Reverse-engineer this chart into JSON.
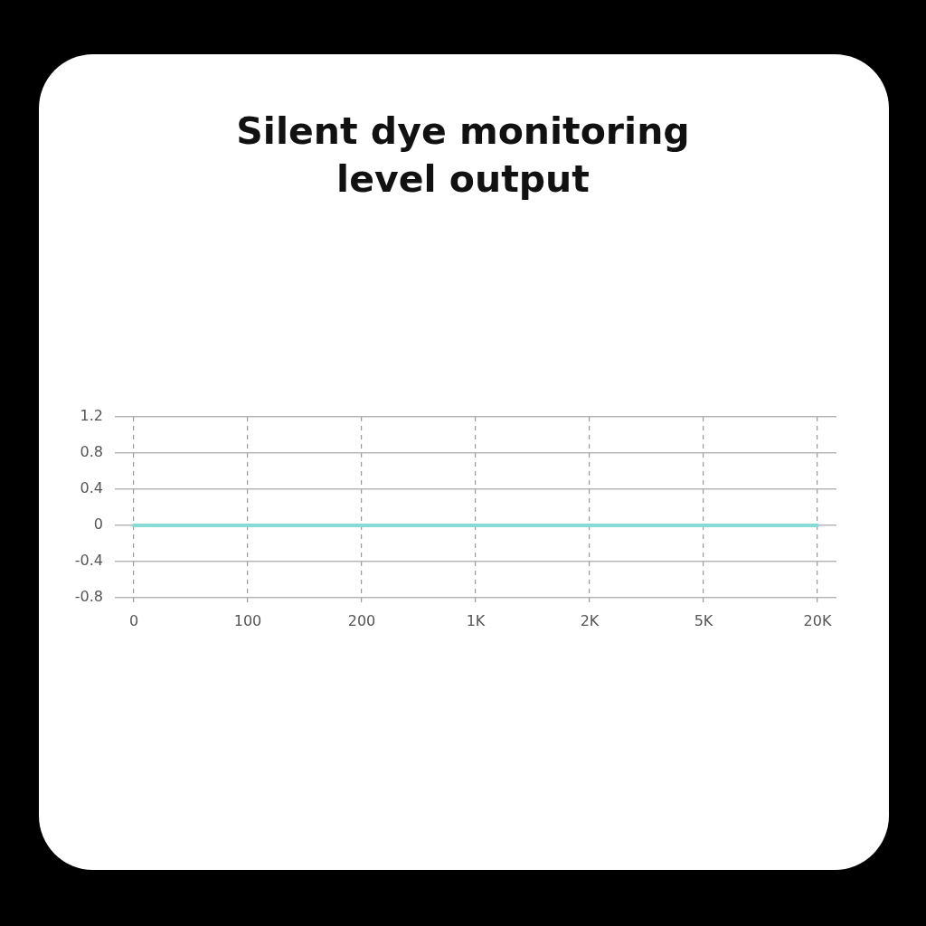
{
  "chart_data": {
    "type": "line",
    "title": "Silent dye monitoring level output",
    "categories": [
      "0",
      "100",
      "200",
      "1K",
      "2K",
      "5K",
      "20K"
    ],
    "series": [
      {
        "color": "#86dcd4",
        "values": [
          0,
          0,
          0,
          0,
          0,
          0,
          0
        ]
      }
    ],
    "ylim": [
      -0.8,
      1.2
    ],
    "yticks": [
      -0.8,
      -0.4,
      0,
      0.4,
      0.8,
      1.2
    ],
    "grid": true,
    "marker": "none",
    "line_style": "solid"
  }
}
